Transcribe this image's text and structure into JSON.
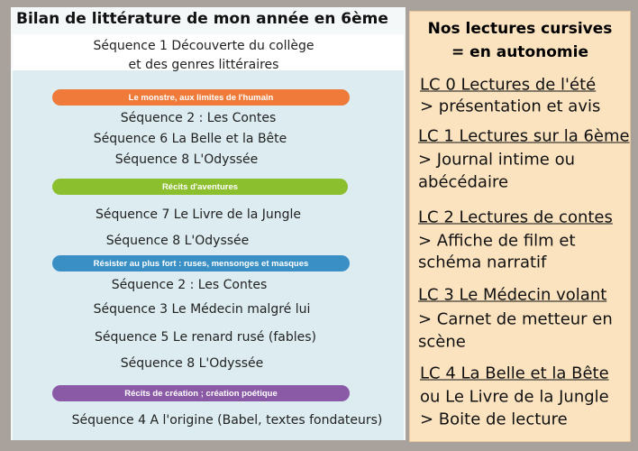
{
  "title": "Bilan de littérature de mon année en 6ème",
  "intro": [
    "Séquence 1 Découverte du collège",
    "et des genres littéraires"
  ],
  "themes": [
    {
      "label": "Le monstre, aux limites de l'humain",
      "items": [
        "Séquence 2 : Les Contes",
        "Séquence 6 La Belle et la Bête",
        "Séquence 8 L'Odyssée"
      ]
    },
    {
      "label": "Récits d'aventures",
      "items": [
        "Séquence 7 Le Livre de la Jungle",
        "Séquence 8 L'Odyssée"
      ]
    },
    {
      "label": "Résister au plus fort : ruses, mensonges et masques",
      "items": [
        "Séquence 2 : Les Contes",
        "Séquence 3 Le Médecin malgré lui",
        "Séquence 5 Le renard rusé (fables)",
        "Séquence 8 L'Odyssée"
      ]
    },
    {
      "label": "Récits de création ; création poétique",
      "items": [
        "Séquence 4 A l'origine (Babel, textes fondateurs)"
      ]
    }
  ],
  "aside": {
    "title": [
      "Nos lectures cursives",
      "= en autonomie"
    ],
    "entries": [
      {
        "heading": "LC 0 Lectures de l'été",
        "lines": [
          "> présentation et avis"
        ]
      },
      {
        "heading": "LC 1 Lectures sur la 6ème",
        "lines": [
          "> Journal intime ou",
          "abécédaire"
        ]
      },
      {
        "heading": "LC 2 Lectures de contes",
        "lines": [
          "> Affiche de film et",
          "schéma narratif"
        ]
      },
      {
        "heading": "LC 3 Le Médecin volant",
        "lines": [
          "> Carnet de metteur en",
          "scène"
        ]
      },
      {
        "heading": "LC 4 La Belle et la Bête",
        "lines": [
          "ou Le Livre de la Jungle",
          "> Boite de lecture"
        ]
      }
    ]
  }
}
